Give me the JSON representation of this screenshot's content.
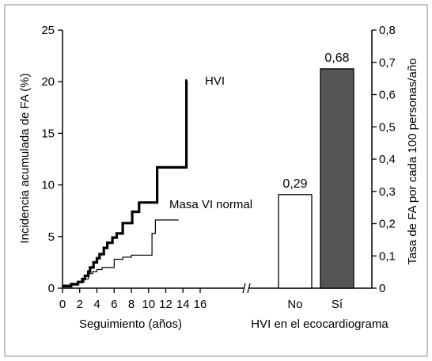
{
  "chart_data": [
    {
      "type": "line",
      "xlabel": "Seguimiento (años)",
      "ylabel": "Incidencia acumulada de FA (%)",
      "xlim": [
        0,
        16
      ],
      "ylim": [
        0,
        25
      ],
      "x_ticks": [
        "0",
        "2",
        "4",
        "6",
        "8",
        "10",
        "12",
        "14",
        "16"
      ],
      "y_ticks": [
        "0",
        "5",
        "10",
        "15",
        "20",
        "25"
      ],
      "series": [
        {
          "name": "HVI",
          "step": true,
          "points": [
            [
              0,
              0.2
            ],
            [
              1,
              0.4
            ],
            [
              1.8,
              0.6
            ],
            [
              2.3,
              0.9
            ],
            [
              2.6,
              1.2
            ],
            [
              3.0,
              1.6
            ],
            [
              3.2,
              2.0
            ],
            [
              3.6,
              2.5
            ],
            [
              4.0,
              2.9
            ],
            [
              4.3,
              3.3
            ],
            [
              4.8,
              3.9
            ],
            [
              5.2,
              4.4
            ],
            [
              5.8,
              4.9
            ],
            [
              6.3,
              5.3
            ],
            [
              7.0,
              6.3
            ],
            [
              8.1,
              7.4
            ],
            [
              8.9,
              8.3
            ],
            [
              11.0,
              11.7
            ],
            [
              14.4,
              20.1
            ],
            [
              14.5,
              20.1
            ]
          ]
        },
        {
          "name": "Masa VI normal",
          "step": true,
          "points": [
            [
              0,
              0.3
            ],
            [
              1.5,
              0.3
            ],
            [
              1.8,
              0.6
            ],
            [
              2.5,
              0.9
            ],
            [
              3.0,
              1.4
            ],
            [
              3.5,
              1.6
            ],
            [
              4.0,
              1.8
            ],
            [
              4.6,
              2.0
            ],
            [
              6.0,
              2.8
            ],
            [
              7.0,
              3.0
            ],
            [
              8.0,
              3.2
            ],
            [
              10.4,
              5.3
            ],
            [
              10.8,
              6.6
            ],
            [
              13.5,
              6.6
            ]
          ]
        }
      ]
    },
    {
      "type": "bar",
      "xlabel": "HVI en el ecocardiograma",
      "ylabel": "Tasa de FA por cada 100 personas/año",
      "ylim": [
        0,
        0.8
      ],
      "y_ticks": [
        "0",
        "0,1",
        "0,2",
        "0,3",
        "0,4",
        "0,5",
        "0,6",
        "0,7",
        "0,8"
      ],
      "categories": [
        "No",
        "Sí"
      ],
      "values": [
        0.29,
        0.68
      ],
      "value_labels": [
        "0,29",
        "0,68"
      ],
      "colors": [
        "#ffffff",
        "#555555"
      ]
    }
  ]
}
